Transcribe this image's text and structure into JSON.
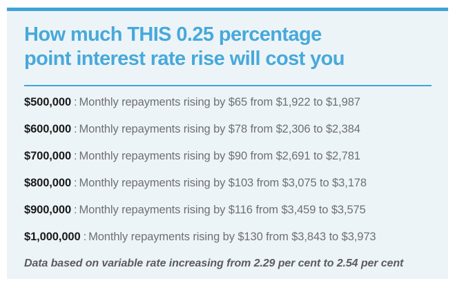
{
  "colors": {
    "accent": "#3fa3d4",
    "heading": "#47a9da",
    "card_bg": "#edf4f8",
    "amount_text": "#191919",
    "body_text": "#6e6f72",
    "footnote_text": "#5b5c5e"
  },
  "card": {
    "title": "How much THIS 0.25 percentage point interest rate rise will cost you",
    "title_lines": [
      "How much THIS 0.25 percentage",
      "point interest rate rise will cost you"
    ],
    "separator": ":",
    "rows": [
      {
        "amount": "$500,000",
        "text": "Monthly repayments rising by $65 from $1,922 to $1,987"
      },
      {
        "amount": "$600,000",
        "text": "Monthly repayments rising by $78 from $2,306 to $2,384"
      },
      {
        "amount": "$700,000",
        "text": "Monthly repayments rising by $90 from $2,691 to $2,781"
      },
      {
        "amount": "$800,000",
        "text": "Monthly repayments rising by $103 from $3,075 to $3,178"
      },
      {
        "amount": "$900,000",
        "text": "Monthly repayments rising by $116 from $3,459 to $3,575"
      },
      {
        "amount": "$1,000,000",
        "text": "Monthly repayments rising by $130 from $3,843 to $3,973"
      }
    ],
    "footnote": "Data based on variable rate increasing from 2.29 per cent to 2.54 per cent"
  }
}
